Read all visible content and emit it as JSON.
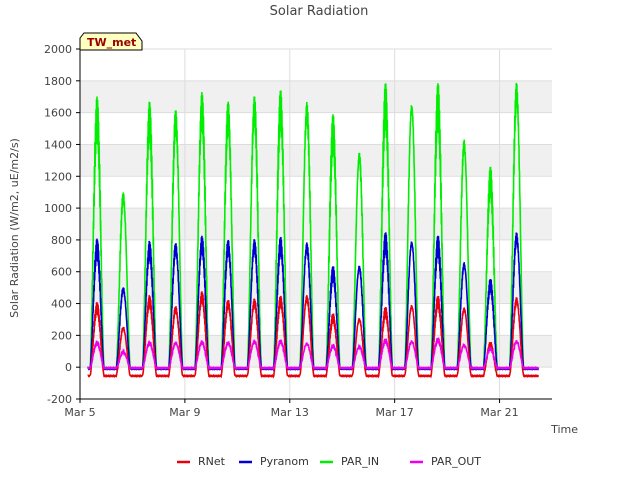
{
  "chart_data": {
    "type": "line",
    "title": "Solar Radiation",
    "xlabel": "Time",
    "ylabel": "Solar Radiation (W/m2, uE/m2/s)",
    "ylim": [
      -200,
      2000
    ],
    "yticks": [
      -200,
      0,
      200,
      400,
      600,
      800,
      1000,
      1200,
      1400,
      1600,
      1800,
      2000
    ],
    "xlim_days": [
      5,
      23
    ],
    "xticks": [
      {
        "day": 5,
        "label": "Mar 5"
      },
      {
        "day": 9,
        "label": "Mar 9"
      },
      {
        "day": 13,
        "label": "Mar 13"
      },
      {
        "day": 17,
        "label": "Mar 17"
      },
      {
        "day": 21,
        "label": "Mar 21"
      }
    ],
    "grid": true,
    "station_label": "TW_met",
    "legend_position": "bottom",
    "days": [
      5.65,
      6.65,
      7.65,
      8.65,
      9.65,
      10.65,
      11.65,
      12.65,
      13.65,
      14.65,
      15.65,
      16.65,
      17.65,
      18.65,
      19.65,
      20.65,
      21.65
    ],
    "series": [
      {
        "name": "RNet",
        "color": "#e8000b",
        "night": -55,
        "daily_peak": [
          410,
          270,
          455,
          400,
          485,
          435,
          445,
          455,
          475,
          340,
          330,
          380,
          420,
          450,
          400,
          160,
          460
        ]
      },
      {
        "name": "Pyranom",
        "color": "#0000d0",
        "night": -10,
        "daily_peak": [
          810,
          530,
          800,
          810,
          840,
          820,
          830,
          830,
          820,
          640,
          680,
          850,
          850,
          830,
          700,
          560,
          885
        ]
      },
      {
        "name": "PAR_IN",
        "color": "#00ee00",
        "night": -10,
        "daily_peak": [
          1705,
          1160,
          1685,
          1680,
          1760,
          1710,
          1760,
          1765,
          1745,
          1600,
          1440,
          1790,
          1780,
          1790,
          1520,
          1270,
          1870
        ]
      },
      {
        "name": "PAR_OUT",
        "color": "#ee00ee",
        "night": -5,
        "daily_peak": [
          165,
          105,
          165,
          165,
          170,
          165,
          175,
          175,
          160,
          145,
          140,
          180,
          175,
          185,
          150,
          125,
          175
        ]
      }
    ]
  }
}
